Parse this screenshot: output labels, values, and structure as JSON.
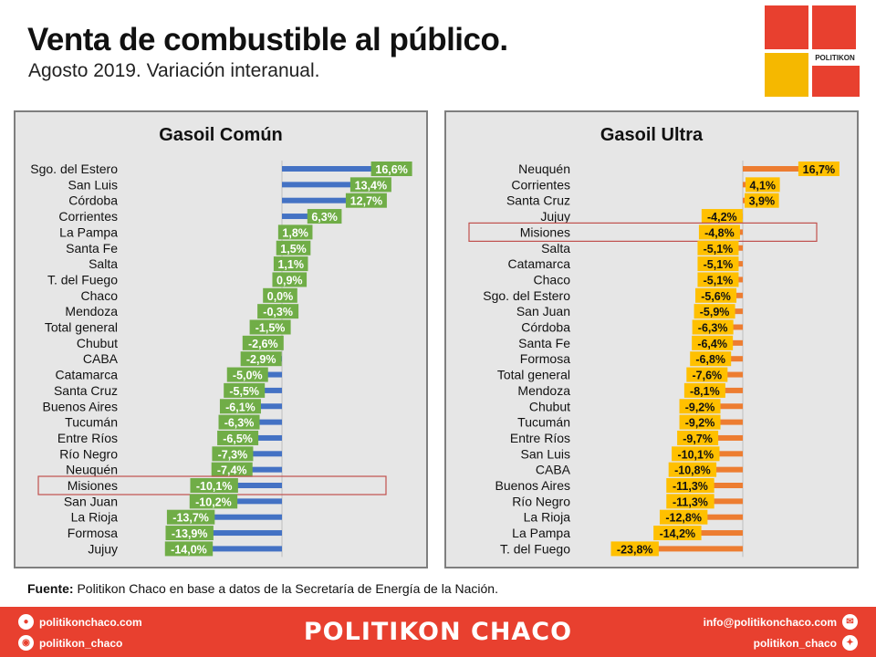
{
  "title": "Venta de combustible al público.",
  "subtitle": "Agosto 2019. Variación interanual.",
  "logo": {
    "text": "POLITIKON",
    "colors": [
      "#e8402f",
      "#f5b800"
    ]
  },
  "source": {
    "label": "Fuente:",
    "text": " Politikon Chaco en base a datos de la Secretaría de Energía de la Nación."
  },
  "footer": {
    "brand": "POLITIKON CHACO",
    "website": "politikonchaco.com",
    "instagram": "politikon_chaco",
    "email": "info@politikonchaco.com",
    "twitter": "politikon_chaco"
  },
  "chart_data": [
    {
      "type": "bar",
      "orientation": "horizontal",
      "title": "Gasoil Común",
      "bar_color": "#4472c4",
      "label_color": "#70ad47",
      "highlight": "Misiones",
      "categories": [
        "Sgo. del Estero",
        "San Luis",
        "Córdoba",
        "Corrientes",
        "La Pampa",
        "Santa Fe",
        "Salta",
        "T. del Fuego",
        "Chaco",
        "Mendoza",
        "Total general",
        "Chubut",
        "CABA",
        "Catamarca",
        "Santa Cruz",
        "Buenos Aires",
        "Tucumán",
        "Entre Ríos",
        "Río Negro",
        "Neuquén",
        "Misiones",
        "San Juan",
        "La Rioja",
        "Formosa",
        "Jujuy"
      ],
      "values": [
        16.6,
        13.4,
        12.7,
        6.3,
        1.8,
        1.5,
        1.1,
        0.9,
        0.0,
        -0.3,
        -1.5,
        -2.6,
        -2.9,
        -5.0,
        -5.5,
        -6.1,
        -6.3,
        -6.5,
        -7.3,
        -7.4,
        -10.1,
        -10.2,
        -13.7,
        -13.9,
        -14.0
      ],
      "labels": [
        "16,6%",
        "13,4%",
        "12,7%",
        "6,3%",
        "1,8%",
        "1,5%",
        "1,1%",
        "0,9%",
        "0,0%",
        "-0,3%",
        "-1,5%",
        "-2,6%",
        "-2,9%",
        "-5,0%",
        "-5,5%",
        "-6,1%",
        "-6,3%",
        "-6,5%",
        "-7,3%",
        "-7,4%",
        "-10,1%",
        "-10,2%",
        "-13,7%",
        "-13,9%",
        "-14,0%"
      ]
    },
    {
      "type": "bar",
      "orientation": "horizontal",
      "title": "Gasoil Ultra",
      "bar_color": "#ed7d31",
      "label_color": "#ffc000",
      "highlight": "Misiones",
      "categories": [
        "Neuquén",
        "Corrientes",
        "Santa Cruz",
        "Jujuy",
        "Misiones",
        "Salta",
        "Catamarca",
        "Chaco",
        "Sgo. del Estero",
        "San Juan",
        "Córdoba",
        "Santa Fe",
        "Formosa",
        "Total general",
        "Mendoza",
        "Chubut",
        "Tucumán",
        "Entre Ríos",
        "San Luis",
        "CABA",
        "Buenos Aires",
        "Río Negro",
        "La Rioja",
        "La Pampa",
        "T. del Fuego"
      ],
      "values": [
        16.7,
        4.1,
        3.9,
        -4.2,
        -4.8,
        -5.1,
        -5.1,
        -5.1,
        -5.6,
        -5.9,
        -6.3,
        -6.4,
        -6.8,
        -7.6,
        -8.1,
        -9.2,
        -9.2,
        -9.7,
        -10.1,
        -10.8,
        -11.3,
        -11.3,
        -12.8,
        -14.2,
        -23.8
      ],
      "labels": [
        "16,7%",
        "4,1%",
        "3,9%",
        "-4,2%",
        "-4,8%",
        "-5,1%",
        "-5,1%",
        "-5,1%",
        "-5,6%",
        "-5,9%",
        "-6,3%",
        "-6,4%",
        "-6,8%",
        "-7,6%",
        "-8,1%",
        "-9,2%",
        "-9,2%",
        "-9,7%",
        "-10,1%",
        "-10,8%",
        "-11,3%",
        "-11,3%",
        "-12,8%",
        "-14,2%",
        "-23,8%"
      ]
    }
  ]
}
